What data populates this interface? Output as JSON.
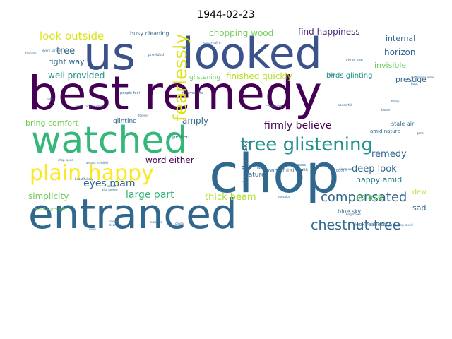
{
  "chart_data": {
    "type": "wordcloud",
    "title": "1944-02-23",
    "words": [
      {
        "text": "best remedy",
        "color": "#440154"
      },
      {
        "text": "us",
        "color": "#3b528b"
      },
      {
        "text": "looked",
        "color": "#3b528b"
      },
      {
        "text": "chop",
        "color": "#31688e"
      },
      {
        "text": "entranced",
        "color": "#31688e"
      },
      {
        "text": "watched",
        "color": "#35b779"
      },
      {
        "text": "plain happy",
        "color": "#fde725"
      },
      {
        "text": "tree glistening",
        "color": "#21918c"
      },
      {
        "text": "fearlessly",
        "color": "#dce319"
      },
      {
        "text": "compensated",
        "color": "#31688e"
      },
      {
        "text": "chestnut tree",
        "color": "#31688e"
      },
      {
        "text": "look outside",
        "color": "#dce319"
      },
      {
        "text": "firmly believe",
        "color": "#440154"
      },
      {
        "text": "chopping wood",
        "color": "#6ece58"
      },
      {
        "text": "find happiness",
        "color": "#482878"
      },
      {
        "text": "eyes roam",
        "color": "#31688e"
      },
      {
        "text": "large part",
        "color": "#35b779"
      },
      {
        "text": "thick beam",
        "color": "#b5de2b"
      },
      {
        "text": "deep look",
        "color": "#31688e"
      },
      {
        "text": "remedy",
        "color": "#31688e"
      },
      {
        "text": "tree",
        "color": "#31688e"
      },
      {
        "text": "right way",
        "color": "#31688e"
      },
      {
        "text": "well provided",
        "color": "#21918c"
      },
      {
        "text": "finished quickly",
        "color": "#b5de2b"
      },
      {
        "text": "simplicity",
        "color": "#6ece58"
      },
      {
        "text": "internal",
        "color": "#31688e"
      },
      {
        "text": "horizon",
        "color": "#31688e"
      },
      {
        "text": "invisible",
        "color": "#6ece58"
      },
      {
        "text": "prestige",
        "color": "#31688e"
      },
      {
        "text": "happy amid",
        "color": "#26828e"
      },
      {
        "text": "solace",
        "color": "#6ece58"
      },
      {
        "text": "dew",
        "color": "#b5de2b"
      },
      {
        "text": "sad",
        "color": "#31688e"
      },
      {
        "text": "amply",
        "color": "#31688e"
      },
      {
        "text": "word either",
        "color": "#440154"
      },
      {
        "text": "bring comfort",
        "color": "#6ece58"
      },
      {
        "text": "cloudless sky",
        "color": "#31688e"
      },
      {
        "text": "birds glinting",
        "color": "#21918c"
      },
      {
        "text": "busy cleaning",
        "color": "#31688e"
      },
      {
        "text": "glistening",
        "color": "#6ece58"
      },
      {
        "text": "perked",
        "color": "#31688e"
      },
      {
        "text": "glinting",
        "color": "#31688e"
      },
      {
        "text": "nature",
        "color": "#31688e"
      },
      {
        "text": "blue sky",
        "color": "#31688e"
      },
      {
        "text": "look fearlessly",
        "color": "#31688e"
      },
      {
        "text": "stale air",
        "color": "#31688e"
      },
      {
        "text": "amid nature",
        "color": "#31688e"
      },
      {
        "text": "wonderful since",
        "color": "#31688e"
      },
      {
        "text": "wants people",
        "color": "#6ece58"
      },
      {
        "text": "seagulls",
        "color": "#31688e"
      },
      {
        "text": "provided",
        "color": "#31688e"
      },
      {
        "text": "sky",
        "color": "#31688e"
      },
      {
        "text": "people feel",
        "color": "#31688e"
      },
      {
        "text": "forever",
        "color": "#31688e"
      },
      {
        "text": "amply compensated",
        "color": "#31688e"
      },
      {
        "text": "chopping",
        "color": "#31688e"
      },
      {
        "text": "relieved like",
        "color": "#31688e"
      },
      {
        "text": "along well",
        "color": "#31688e"
      },
      {
        "text": "pure",
        "color": "#31688e"
      },
      {
        "text": "feeling lonely",
        "color": "#31688e"
      },
      {
        "text": "mass",
        "color": "#31688e"
      },
      {
        "text": "health",
        "color": "#31688e"
      },
      {
        "text": "gone",
        "color": "#31688e"
      },
      {
        "text": "chop wood",
        "color": "#31688e"
      },
      {
        "text": "almost invisible",
        "color": "#31688e"
      },
      {
        "text": "speak",
        "color": "#31688e"
      },
      {
        "text": "also looked",
        "color": "#31688e"
      },
      {
        "text": "sunshine",
        "color": "#31688e"
      },
      {
        "text": "place",
        "color": "#31688e"
      },
      {
        "text": "cleaning",
        "color": "#31688e"
      },
      {
        "text": "lie",
        "color": "#31688e"
      },
      {
        "text": "deep",
        "color": "#31688e"
      },
      {
        "text": "feel",
        "color": "#31688e"
      },
      {
        "text": "firmly",
        "color": "#31688e"
      },
      {
        "text": "cause",
        "color": "#31688e"
      },
      {
        "text": "every sorrow",
        "color": "#31688e"
      },
      {
        "text": "bloom",
        "color": "#31688e"
      },
      {
        "text": "mosaics",
        "color": "#31688e"
      },
      {
        "text": "could see",
        "color": "#31688e"
      },
      {
        "text": "wonderful",
        "color": "#31688e"
      },
      {
        "text": "brightness",
        "color": "#31688e"
      },
      {
        "text": "beautiful sky",
        "color": "#31688e"
      },
      {
        "text": "overwhelming feeling",
        "color": "#31688e"
      },
      {
        "text": "bugs",
        "color": "#31688e"
      },
      {
        "text": "favorite",
        "color": "#31688e"
      },
      {
        "text": "suffer",
        "color": "#31688e"
      }
    ]
  }
}
